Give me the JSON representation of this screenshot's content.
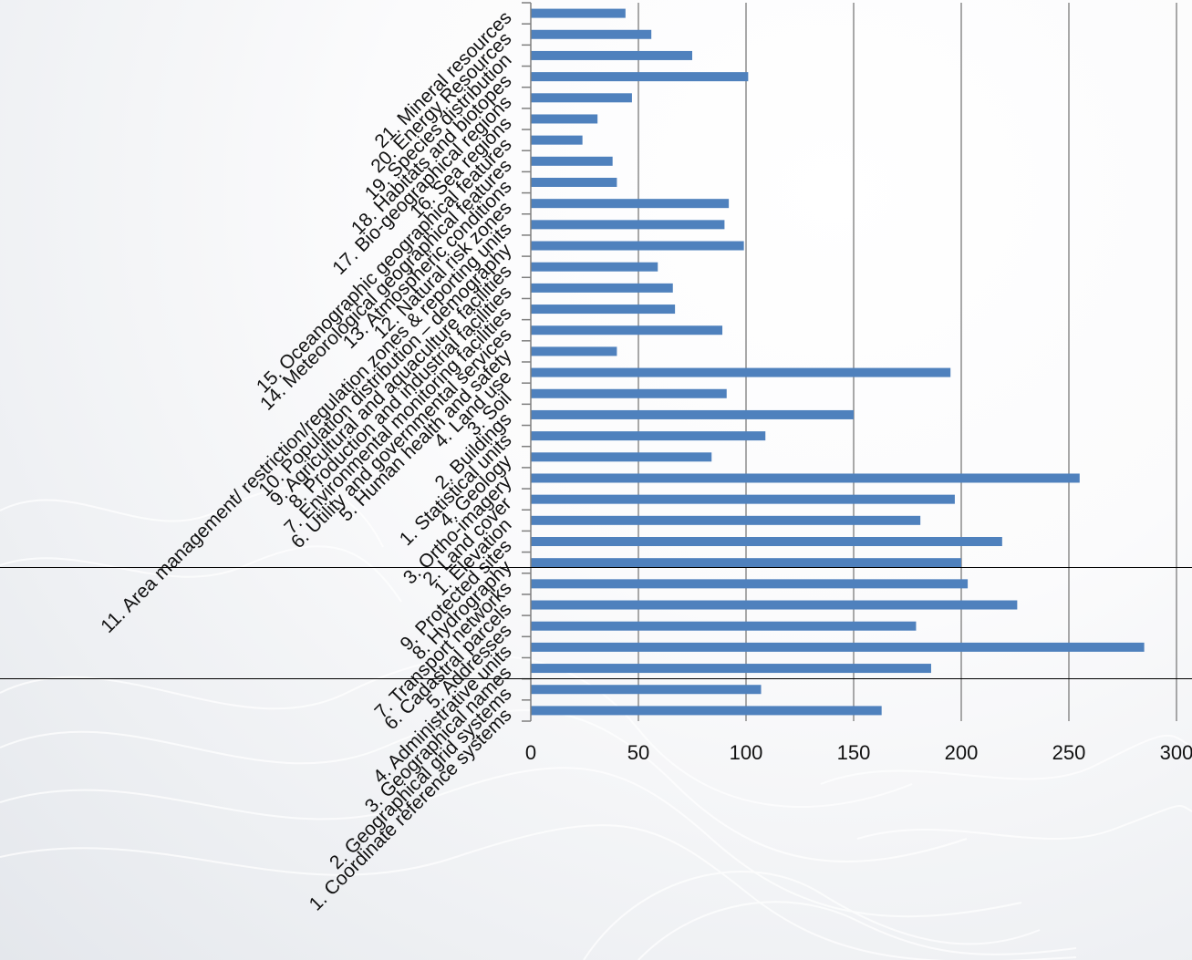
{
  "chart_data": {
    "type": "bar",
    "orientation": "horizontal",
    "bar_color": "#4f81bd",
    "grid_color": "#8c8c8c",
    "xlim": [
      0,
      300
    ],
    "xticks": [
      "0",
      "50",
      "100",
      "150",
      "200",
      "250",
      "300"
    ],
    "grid": true,
    "legend": "none",
    "categories": [
      "21. Mineral resources",
      "20. Energy Resources",
      "19. Species distribution",
      "18. Habitats and biotopes",
      "17. Bio-geographical regions",
      "16. Sea regions",
      "15. Oceanographic geographical features",
      "14. Meteorological geographical features",
      "13. Atmospheric conditions",
      "12. Natural risk zones",
      "11. Area management/ restriction/regulation zones & reporting units",
      "10. Population distribution – demography",
      "9. Agricultural and aquaculture facilities",
      "8. Production and industrial facilities",
      "7. Environmental monitoring facilities",
      "6. Utility and governmental services",
      "5. Human health and safety",
      "4. Land use",
      "3. Soil",
      "2. Buildings",
      "1. Statistical units",
      "4. Geology",
      "3. Ortho-imagery",
      "2. Land cover",
      "1. Elevation",
      "9. Protected sites",
      "8. Hydrography",
      "7. Transport networks",
      "6. Cadastral parcels",
      "5. Addresses",
      "4. Administrative units",
      "3. Geographical names",
      "2. Geographical grid systems",
      "1. Coordinate reference systems"
    ],
    "values": [
      44,
      56,
      75,
      101,
      47,
      31,
      24,
      38,
      40,
      92,
      90,
      99,
      59,
      66,
      67,
      89,
      40,
      195,
      91,
      150,
      109,
      84,
      255,
      197,
      181,
      219,
      200,
      203,
      226,
      179,
      285,
      186,
      107,
      163
    ]
  }
}
